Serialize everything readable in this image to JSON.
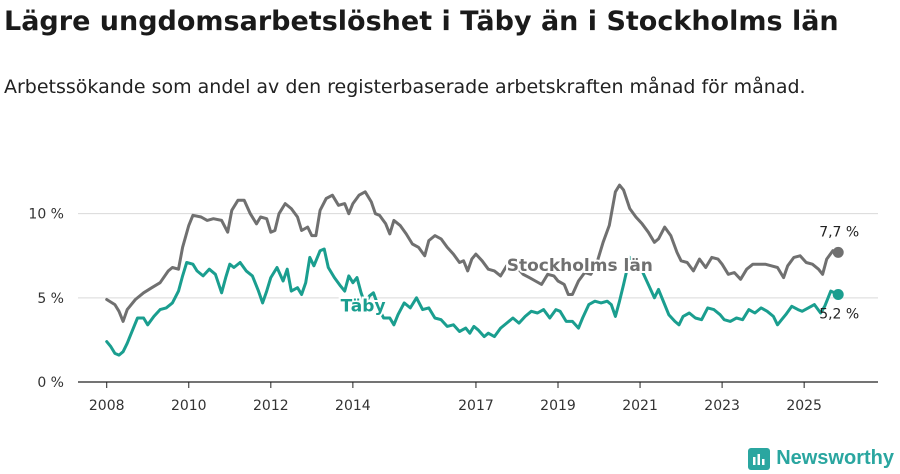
{
  "title": "Lägre ungdomsarbetslöshet i Täby än i Stockholms län",
  "subtitle": "Arbetssökande som andel av den registerbaserade arbetskraften månad för månad.",
  "brand": "Newsworthy",
  "colors": {
    "stockholm": "#707070",
    "taby": "#1a9e8f",
    "grid": "#d9d9d9",
    "text": "#1a1a1a",
    "brand": "#2aa6a0"
  },
  "chart_data": {
    "type": "line",
    "title": "Lägre ungdomsarbetslöshet i Täby än i Stockholms län",
    "xlabel": "",
    "ylabel": "",
    "x_range": [
      2007.3,
      2026.8
    ],
    "ylim": [
      0,
      12
    ],
    "x_ticks": [
      {
        "value": 2008,
        "label": "2008"
      },
      {
        "value": 2010,
        "label": "2010"
      },
      {
        "value": 2012,
        "label": "2012"
      },
      {
        "value": 2014,
        "label": "2014"
      },
      {
        "value": 2017,
        "label": "2017"
      },
      {
        "value": 2019,
        "label": "2019"
      },
      {
        "value": 2021,
        "label": "2021"
      },
      {
        "value": 2023,
        "label": "2023"
      },
      {
        "value": 2025,
        "label": "2025"
      }
    ],
    "y_ticks": [
      {
        "value": 0,
        "label": "0 %"
      },
      {
        "value": 5,
        "label": "5 %"
      },
      {
        "value": 10,
        "label": "10 %"
      }
    ],
    "grid": true,
    "series": [
      {
        "name": "Stockholms län",
        "label": "Stockholms län",
        "end_label": "7,7 %",
        "points": [
          [
            2008.0,
            4.9
          ],
          [
            2008.2,
            4.6
          ],
          [
            2008.3,
            4.2
          ],
          [
            2008.4,
            3.6
          ],
          [
            2008.5,
            4.3
          ],
          [
            2008.7,
            4.9
          ],
          [
            2008.9,
            5.3
          ],
          [
            2009.1,
            5.6
          ],
          [
            2009.3,
            5.9
          ],
          [
            2009.5,
            6.6
          ],
          [
            2009.6,
            6.8
          ],
          [
            2009.75,
            6.7
          ],
          [
            2009.85,
            8.0
          ],
          [
            2010.0,
            9.3
          ],
          [
            2010.1,
            9.9
          ],
          [
            2010.3,
            9.8
          ],
          [
            2010.45,
            9.6
          ],
          [
            2010.6,
            9.7
          ],
          [
            2010.8,
            9.6
          ],
          [
            2010.95,
            8.9
          ],
          [
            2011.05,
            10.2
          ],
          [
            2011.2,
            10.8
          ],
          [
            2011.35,
            10.8
          ],
          [
            2011.5,
            10.0
          ],
          [
            2011.65,
            9.4
          ],
          [
            2011.75,
            9.8
          ],
          [
            2011.9,
            9.7
          ],
          [
            2012.0,
            8.9
          ],
          [
            2012.1,
            9.0
          ],
          [
            2012.2,
            10.0
          ],
          [
            2012.35,
            10.6
          ],
          [
            2012.5,
            10.3
          ],
          [
            2012.65,
            9.8
          ],
          [
            2012.75,
            9.0
          ],
          [
            2012.9,
            9.2
          ],
          [
            2013.0,
            8.7
          ],
          [
            2013.1,
            8.7
          ],
          [
            2013.2,
            10.2
          ],
          [
            2013.35,
            10.9
          ],
          [
            2013.5,
            11.1
          ],
          [
            2013.65,
            10.5
          ],
          [
            2013.8,
            10.6
          ],
          [
            2013.9,
            10.0
          ],
          [
            2014.0,
            10.6
          ],
          [
            2014.15,
            11.1
          ],
          [
            2014.3,
            11.3
          ],
          [
            2014.45,
            10.7
          ],
          [
            2014.55,
            10.0
          ],
          [
            2014.65,
            9.9
          ],
          [
            2014.8,
            9.4
          ],
          [
            2014.9,
            8.8
          ],
          [
            2015.0,
            9.6
          ],
          [
            2015.15,
            9.3
          ],
          [
            2015.3,
            8.8
          ],
          [
            2015.45,
            8.2
          ],
          [
            2015.6,
            8.0
          ],
          [
            2015.75,
            7.5
          ],
          [
            2015.85,
            8.4
          ],
          [
            2016.0,
            8.7
          ],
          [
            2016.15,
            8.5
          ],
          [
            2016.3,
            8.0
          ],
          [
            2016.45,
            7.6
          ],
          [
            2016.6,
            7.1
          ],
          [
            2016.7,
            7.2
          ],
          [
            2016.8,
            6.6
          ],
          [
            2016.9,
            7.3
          ],
          [
            2017.0,
            7.6
          ],
          [
            2017.15,
            7.2
          ],
          [
            2017.3,
            6.7
          ],
          [
            2017.45,
            6.6
          ],
          [
            2017.6,
            6.3
          ],
          [
            2017.75,
            6.9
          ],
          [
            2017.85,
            7.0
          ],
          [
            2018.0,
            6.8
          ],
          [
            2018.15,
            6.4
          ],
          [
            2018.3,
            6.2
          ],
          [
            2018.45,
            6.0
          ],
          [
            2018.6,
            5.8
          ],
          [
            2018.75,
            6.4
          ],
          [
            2018.9,
            6.3
          ],
          [
            2019.0,
            6.0
          ],
          [
            2019.15,
            5.8
          ],
          [
            2019.25,
            5.2
          ],
          [
            2019.35,
            5.2
          ],
          [
            2019.5,
            6.0
          ],
          [
            2019.65,
            6.5
          ],
          [
            2019.8,
            6.4
          ],
          [
            2019.95,
            7.1
          ],
          [
            2020.1,
            8.3
          ],
          [
            2020.25,
            9.3
          ],
          [
            2020.4,
            11.3
          ],
          [
            2020.5,
            11.7
          ],
          [
            2020.6,
            11.4
          ],
          [
            2020.75,
            10.3
          ],
          [
            2020.9,
            9.8
          ],
          [
            2021.05,
            9.4
          ],
          [
            2021.2,
            8.9
          ],
          [
            2021.35,
            8.3
          ],
          [
            2021.45,
            8.5
          ],
          [
            2021.6,
            9.2
          ],
          [
            2021.75,
            8.7
          ],
          [
            2021.9,
            7.7
          ],
          [
            2022.0,
            7.2
          ],
          [
            2022.15,
            7.1
          ],
          [
            2022.3,
            6.6
          ],
          [
            2022.45,
            7.3
          ],
          [
            2022.6,
            6.8
          ],
          [
            2022.75,
            7.4
          ],
          [
            2022.9,
            7.3
          ],
          [
            2023.0,
            7.0
          ],
          [
            2023.15,
            6.4
          ],
          [
            2023.3,
            6.5
          ],
          [
            2023.45,
            6.1
          ],
          [
            2023.6,
            6.7
          ],
          [
            2023.75,
            7.0
          ],
          [
            2023.9,
            7.0
          ],
          [
            2024.05,
            7.0
          ],
          [
            2024.2,
            6.9
          ],
          [
            2024.35,
            6.8
          ],
          [
            2024.5,
            6.2
          ],
          [
            2024.6,
            6.9
          ],
          [
            2024.75,
            7.4
          ],
          [
            2024.9,
            7.5
          ],
          [
            2025.05,
            7.1
          ],
          [
            2025.2,
            7.0
          ],
          [
            2025.35,
            6.7
          ],
          [
            2025.45,
            6.4
          ],
          [
            2025.55,
            7.3
          ],
          [
            2025.7,
            7.8
          ],
          [
            2025.83,
            7.7
          ]
        ]
      },
      {
        "name": "Täby",
        "label": "Täby",
        "end_label": "5,2 %",
        "points": [
          [
            2008.0,
            2.4
          ],
          [
            2008.1,
            2.1
          ],
          [
            2008.2,
            1.7
          ],
          [
            2008.3,
            1.6
          ],
          [
            2008.4,
            1.8
          ],
          [
            2008.5,
            2.3
          ],
          [
            2008.6,
            2.9
          ],
          [
            2008.75,
            3.8
          ],
          [
            2008.9,
            3.8
          ],
          [
            2009.0,
            3.4
          ],
          [
            2009.15,
            3.9
          ],
          [
            2009.3,
            4.3
          ],
          [
            2009.45,
            4.4
          ],
          [
            2009.6,
            4.7
          ],
          [
            2009.75,
            5.4
          ],
          [
            2009.85,
            6.3
          ],
          [
            2009.95,
            7.1
          ],
          [
            2010.1,
            7.0
          ],
          [
            2010.2,
            6.6
          ],
          [
            2010.35,
            6.3
          ],
          [
            2010.5,
            6.7
          ],
          [
            2010.65,
            6.4
          ],
          [
            2010.8,
            5.3
          ],
          [
            2010.9,
            6.2
          ],
          [
            2011.0,
            7.0
          ],
          [
            2011.1,
            6.8
          ],
          [
            2011.25,
            7.1
          ],
          [
            2011.4,
            6.6
          ],
          [
            2011.55,
            6.3
          ],
          [
            2011.7,
            5.4
          ],
          [
            2011.8,
            4.7
          ],
          [
            2011.9,
            5.4
          ],
          [
            2012.0,
            6.2
          ],
          [
            2012.15,
            6.8
          ],
          [
            2012.3,
            6.0
          ],
          [
            2012.4,
            6.7
          ],
          [
            2012.5,
            5.4
          ],
          [
            2012.65,
            5.6
          ],
          [
            2012.75,
            5.2
          ],
          [
            2012.85,
            5.9
          ],
          [
            2012.95,
            7.4
          ],
          [
            2013.05,
            6.9
          ],
          [
            2013.2,
            7.8
          ],
          [
            2013.3,
            7.9
          ],
          [
            2013.4,
            6.8
          ],
          [
            2013.55,
            6.2
          ],
          [
            2013.7,
            5.7
          ],
          [
            2013.8,
            5.4
          ],
          [
            2013.9,
            6.3
          ],
          [
            2014.0,
            5.9
          ],
          [
            2014.1,
            6.2
          ],
          [
            2014.2,
            5.3
          ],
          [
            2014.3,
            4.6
          ],
          [
            2014.4,
            5.1
          ],
          [
            2014.5,
            5.3
          ],
          [
            2014.65,
            4.3
          ],
          [
            2014.75,
            3.8
          ],
          [
            2014.9,
            3.8
          ],
          [
            2015.0,
            3.4
          ],
          [
            2015.1,
            4.0
          ],
          [
            2015.25,
            4.7
          ],
          [
            2015.4,
            4.4
          ],
          [
            2015.55,
            5.0
          ],
          [
            2015.7,
            4.3
          ],
          [
            2015.85,
            4.4
          ],
          [
            2016.0,
            3.8
          ],
          [
            2016.15,
            3.7
          ],
          [
            2016.3,
            3.3
          ],
          [
            2016.45,
            3.4
          ],
          [
            2016.6,
            3.0
          ],
          [
            2016.75,
            3.2
          ],
          [
            2016.85,
            2.9
          ],
          [
            2016.95,
            3.3
          ],
          [
            2017.05,
            3.1
          ],
          [
            2017.2,
            2.7
          ],
          [
            2017.3,
            2.9
          ],
          [
            2017.45,
            2.7
          ],
          [
            2017.6,
            3.2
          ],
          [
            2017.75,
            3.5
          ],
          [
            2017.9,
            3.8
          ],
          [
            2018.05,
            3.5
          ],
          [
            2018.2,
            3.9
          ],
          [
            2018.35,
            4.2
          ],
          [
            2018.5,
            4.1
          ],
          [
            2018.65,
            4.3
          ],
          [
            2018.8,
            3.8
          ],
          [
            2018.95,
            4.3
          ],
          [
            2019.05,
            4.2
          ],
          [
            2019.2,
            3.6
          ],
          [
            2019.35,
            3.6
          ],
          [
            2019.5,
            3.2
          ],
          [
            2019.6,
            3.8
          ],
          [
            2019.75,
            4.6
          ],
          [
            2019.9,
            4.8
          ],
          [
            2020.05,
            4.7
          ],
          [
            2020.2,
            4.8
          ],
          [
            2020.3,
            4.6
          ],
          [
            2020.4,
            3.9
          ],
          [
            2020.5,
            4.8
          ],
          [
            2020.6,
            5.8
          ],
          [
            2020.75,
            7.4
          ],
          [
            2020.85,
            7.0
          ],
          [
            2020.95,
            6.9
          ],
          [
            2021.05,
            6.6
          ],
          [
            2021.2,
            5.8
          ],
          [
            2021.35,
            5.0
          ],
          [
            2021.45,
            5.5
          ],
          [
            2021.55,
            4.9
          ],
          [
            2021.7,
            4.0
          ],
          [
            2021.85,
            3.6
          ],
          [
            2021.95,
            3.4
          ],
          [
            2022.05,
            3.9
          ],
          [
            2022.2,
            4.1
          ],
          [
            2022.35,
            3.8
          ],
          [
            2022.5,
            3.7
          ],
          [
            2022.65,
            4.4
          ],
          [
            2022.8,
            4.3
          ],
          [
            2022.95,
            4.0
          ],
          [
            2023.05,
            3.7
          ],
          [
            2023.2,
            3.6
          ],
          [
            2023.35,
            3.8
          ],
          [
            2023.5,
            3.7
          ],
          [
            2023.65,
            4.3
          ],
          [
            2023.8,
            4.1
          ],
          [
            2023.95,
            4.4
          ],
          [
            2024.1,
            4.2
          ],
          [
            2024.25,
            3.9
          ],
          [
            2024.35,
            3.4
          ],
          [
            2024.45,
            3.7
          ],
          [
            2024.55,
            4.0
          ],
          [
            2024.7,
            4.5
          ],
          [
            2024.85,
            4.3
          ],
          [
            2024.95,
            4.2
          ],
          [
            2025.1,
            4.4
          ],
          [
            2025.25,
            4.6
          ],
          [
            2025.4,
            4.1
          ],
          [
            2025.5,
            4.5
          ],
          [
            2025.65,
            5.4
          ],
          [
            2025.83,
            5.2
          ]
        ]
      }
    ]
  }
}
